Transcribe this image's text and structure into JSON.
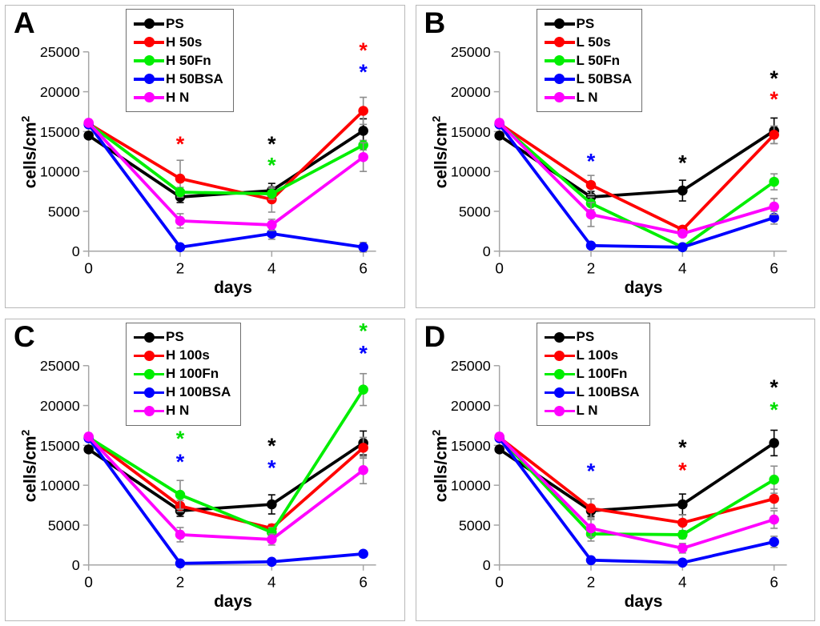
{
  "axes": {
    "xlabel": "days",
    "ylabel_base": "cells/cm",
    "ylabel_sup": "2",
    "ylabel": "cells/cm²",
    "xticks": [
      0,
      2,
      4,
      6
    ],
    "yticks": [
      0,
      5000,
      10000,
      15000,
      20000,
      25000
    ],
    "xlim": [
      0,
      6.3
    ],
    "ylim": [
      0,
      25000
    ],
    "grid": "off",
    "axis_color": "#a6a6a6",
    "error_bar_color": "#8c8c8c",
    "legend_position": "top-center"
  },
  "chart_data": [
    {
      "panel": "A",
      "type": "line",
      "xlabel": "days",
      "ylabel": "cells/cm²",
      "x": [
        0,
        2,
        4,
        6
      ],
      "series": [
        {
          "name": "PS",
          "color": "#000000",
          "values": [
            14500,
            6800,
            7600,
            15100
          ],
          "errors": [
            0,
            700,
            900,
            1500
          ]
        },
        {
          "name": "H 50s",
          "color": "#ff0000",
          "values": [
            16000,
            9100,
            6500,
            17600
          ],
          "errors": [
            0,
            2300,
            1600,
            1700
          ]
        },
        {
          "name": "H 50Fn",
          "color": "#00ee00",
          "values": [
            16000,
            7400,
            7200,
            13300
          ],
          "errors": [
            0,
            600,
            700,
            600
          ]
        },
        {
          "name": "H 50BSA",
          "color": "#0000ff",
          "values": [
            15900,
            500,
            2200,
            500
          ],
          "errors": [
            0,
            300,
            700,
            600
          ]
        },
        {
          "name": "H N",
          "color": "#ff00ff",
          "values": [
            16100,
            3800,
            3300,
            11800
          ],
          "errors": [
            0,
            900,
            700,
            1800
          ]
        }
      ],
      "annotations": [
        {
          "x": 2,
          "y": 13500,
          "symbol": "*",
          "color": "#ff0000"
        },
        {
          "x": 4,
          "y": 13500,
          "symbol": "*",
          "color": "#000000"
        },
        {
          "x": 4,
          "y": 10800,
          "symbol": "*",
          "color": "#00dd00"
        },
        {
          "x": 6,
          "y": 25200,
          "symbol": "*",
          "color": "#ff0000"
        },
        {
          "x": 6,
          "y": 22500,
          "symbol": "*",
          "color": "#0000ff"
        }
      ]
    },
    {
      "panel": "B",
      "type": "line",
      "xlabel": "days",
      "ylabel": "cells/cm²",
      "x": [
        0,
        2,
        4,
        6
      ],
      "series": [
        {
          "name": "PS",
          "color": "#000000",
          "values": [
            14500,
            6800,
            7600,
            15100
          ],
          "errors": [
            0,
            700,
            1300,
            1600
          ]
        },
        {
          "name": "L 50s",
          "color": "#ff0000",
          "values": [
            16000,
            8300,
            2700,
            14600
          ],
          "errors": [
            0,
            1200,
            400,
            1100
          ]
        },
        {
          "name": "L 50Fn",
          "color": "#00ee00",
          "values": [
            16000,
            6000,
            500,
            8700
          ],
          "errors": [
            0,
            800,
            300,
            1000
          ]
        },
        {
          "name": "L 50BSA",
          "color": "#0000ff",
          "values": [
            15900,
            700,
            500,
            4200
          ],
          "errors": [
            0,
            300,
            300,
            800
          ]
        },
        {
          "name": "L N",
          "color": "#ff00ff",
          "values": [
            16100,
            4600,
            2200,
            5600
          ],
          "errors": [
            0,
            1500,
            400,
            1000
          ]
        }
      ],
      "annotations": [
        {
          "x": 2,
          "y": 11300,
          "symbol": "*",
          "color": "#0000ff"
        },
        {
          "x": 4,
          "y": 11100,
          "symbol": "*",
          "color": "#000000"
        },
        {
          "x": 6,
          "y": 21700,
          "symbol": "*",
          "color": "#000000"
        },
        {
          "x": 6,
          "y": 19100,
          "symbol": "*",
          "color": "#ff0000"
        }
      ]
    },
    {
      "panel": "C",
      "type": "line",
      "xlabel": "days",
      "ylabel": "cells/cm²",
      "x": [
        0,
        2,
        4,
        6
      ],
      "series": [
        {
          "name": "PS",
          "color": "#000000",
          "values": [
            14500,
            6800,
            7600,
            15300
          ],
          "errors": [
            0,
            700,
            1200,
            1500
          ]
        },
        {
          "name": "H 100s",
          "color": "#ff0000",
          "values": [
            16000,
            7400,
            4600,
            14700
          ],
          "errors": [
            0,
            700,
            500,
            1300
          ]
        },
        {
          "name": "H 100Fn",
          "color": "#00ee00",
          "values": [
            16000,
            8800,
            4100,
            22000
          ],
          "errors": [
            0,
            1800,
            600,
            2000
          ]
        },
        {
          "name": "H 100BSA",
          "color": "#0000ff",
          "values": [
            15900,
            200,
            400,
            1400
          ],
          "errors": [
            0,
            200,
            300,
            400
          ]
        },
        {
          "name": "H N",
          "color": "#ff00ff",
          "values": [
            16100,
            3800,
            3200,
            11900
          ],
          "errors": [
            0,
            900,
            700,
            1700
          ]
        }
      ],
      "annotations": [
        {
          "x": 2,
          "y": 15900,
          "symbol": "*",
          "color": "#00dd00"
        },
        {
          "x": 2,
          "y": 13000,
          "symbol": "*",
          "color": "#0000ff"
        },
        {
          "x": 4,
          "y": 15000,
          "symbol": "*",
          "color": "#000000"
        },
        {
          "x": 4,
          "y": 12200,
          "symbol": "*",
          "color": "#0000ff"
        },
        {
          "x": 6,
          "y": 29400,
          "symbol": "*",
          "color": "#00dd00"
        },
        {
          "x": 6,
          "y": 26600,
          "symbol": "*",
          "color": "#0000ff"
        }
      ]
    },
    {
      "panel": "D",
      "type": "line",
      "xlabel": "days",
      "ylabel": "cells/cm²",
      "x": [
        0,
        2,
        4,
        6
      ],
      "series": [
        {
          "name": "PS",
          "color": "#000000",
          "values": [
            14500,
            6800,
            7600,
            15300
          ],
          "errors": [
            0,
            700,
            1300,
            1600
          ]
        },
        {
          "name": "L 100s",
          "color": "#ff0000",
          "values": [
            16000,
            7100,
            5300,
            8300
          ],
          "errors": [
            0,
            1200,
            1000,
            1200
          ]
        },
        {
          "name": "L 100Fn",
          "color": "#00ee00",
          "values": [
            16000,
            3900,
            3800,
            10700
          ],
          "errors": [
            0,
            900,
            500,
            1700
          ]
        },
        {
          "name": "L 100BSA",
          "color": "#0000ff",
          "values": [
            15900,
            600,
            300,
            2900
          ],
          "errors": [
            0,
            300,
            200,
            700
          ]
        },
        {
          "name": "L N",
          "color": "#ff00ff",
          "values": [
            16100,
            4600,
            2100,
            5700
          ],
          "errors": [
            0,
            1100,
            600,
            1100
          ]
        }
      ],
      "annotations": [
        {
          "x": 2,
          "y": 11800,
          "symbol": "*",
          "color": "#0000ff"
        },
        {
          "x": 4,
          "y": 14800,
          "symbol": "*",
          "color": "#000000"
        },
        {
          "x": 4,
          "y": 11900,
          "symbol": "*",
          "color": "#ff0000"
        },
        {
          "x": 6,
          "y": 22300,
          "symbol": "*",
          "color": "#000000"
        },
        {
          "x": 6,
          "y": 19500,
          "symbol": "*",
          "color": "#00dd00"
        }
      ]
    }
  ]
}
